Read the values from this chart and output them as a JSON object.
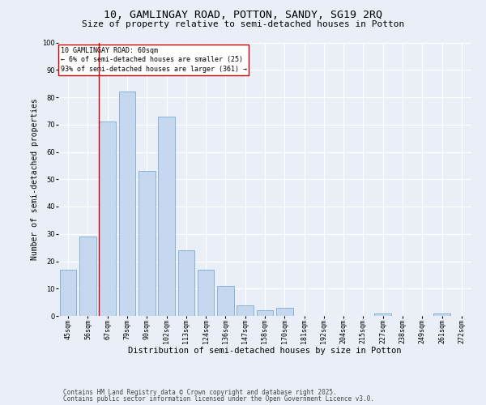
{
  "title1": "10, GAMLINGAY ROAD, POTTON, SANDY, SG19 2RQ",
  "title2": "Size of property relative to semi-detached houses in Potton",
  "xlabel": "Distribution of semi-detached houses by size in Potton",
  "ylabel": "Number of semi-detached properties",
  "categories": [
    "45sqm",
    "56sqm",
    "67sqm",
    "79sqm",
    "90sqm",
    "102sqm",
    "113sqm",
    "124sqm",
    "136sqm",
    "147sqm",
    "158sqm",
    "170sqm",
    "181sqm",
    "192sqm",
    "204sqm",
    "215sqm",
    "227sqm",
    "238sqm",
    "249sqm",
    "261sqm",
    "272sqm"
  ],
  "values": [
    17,
    29,
    71,
    82,
    53,
    73,
    24,
    17,
    11,
    4,
    2,
    3,
    0,
    0,
    0,
    0,
    1,
    0,
    0,
    1,
    0
  ],
  "bar_color": "#c5d8f0",
  "bar_edge_color": "#6a9fc8",
  "vline_x": 1.575,
  "annotation_title": "10 GAMLINGAY ROAD: 60sqm",
  "annotation_line1": "← 6% of semi-detached houses are smaller (25)",
  "annotation_line2": "93% of semi-detached houses are larger (361) →",
  "annotation_box_color": "#ffffff",
  "annotation_box_edge": "#cc0000",
  "vline_color": "#cc0000",
  "ylim": [
    0,
    100
  ],
  "yticks": [
    0,
    10,
    20,
    30,
    40,
    50,
    60,
    70,
    80,
    90,
    100
  ],
  "bg_color": "#eaeff7",
  "plot_bg_color": "#eaeff7",
  "grid_color": "#ffffff",
  "footer1": "Contains HM Land Registry data © Crown copyright and database right 2025.",
  "footer2": "Contains public sector information licensed under the Open Government Licence v3.0.",
  "title1_fontsize": 9.5,
  "title2_fontsize": 8,
  "xlabel_fontsize": 7.5,
  "ylabel_fontsize": 7,
  "tick_fontsize": 6,
  "annot_fontsize": 6,
  "footer_fontsize": 5.5
}
